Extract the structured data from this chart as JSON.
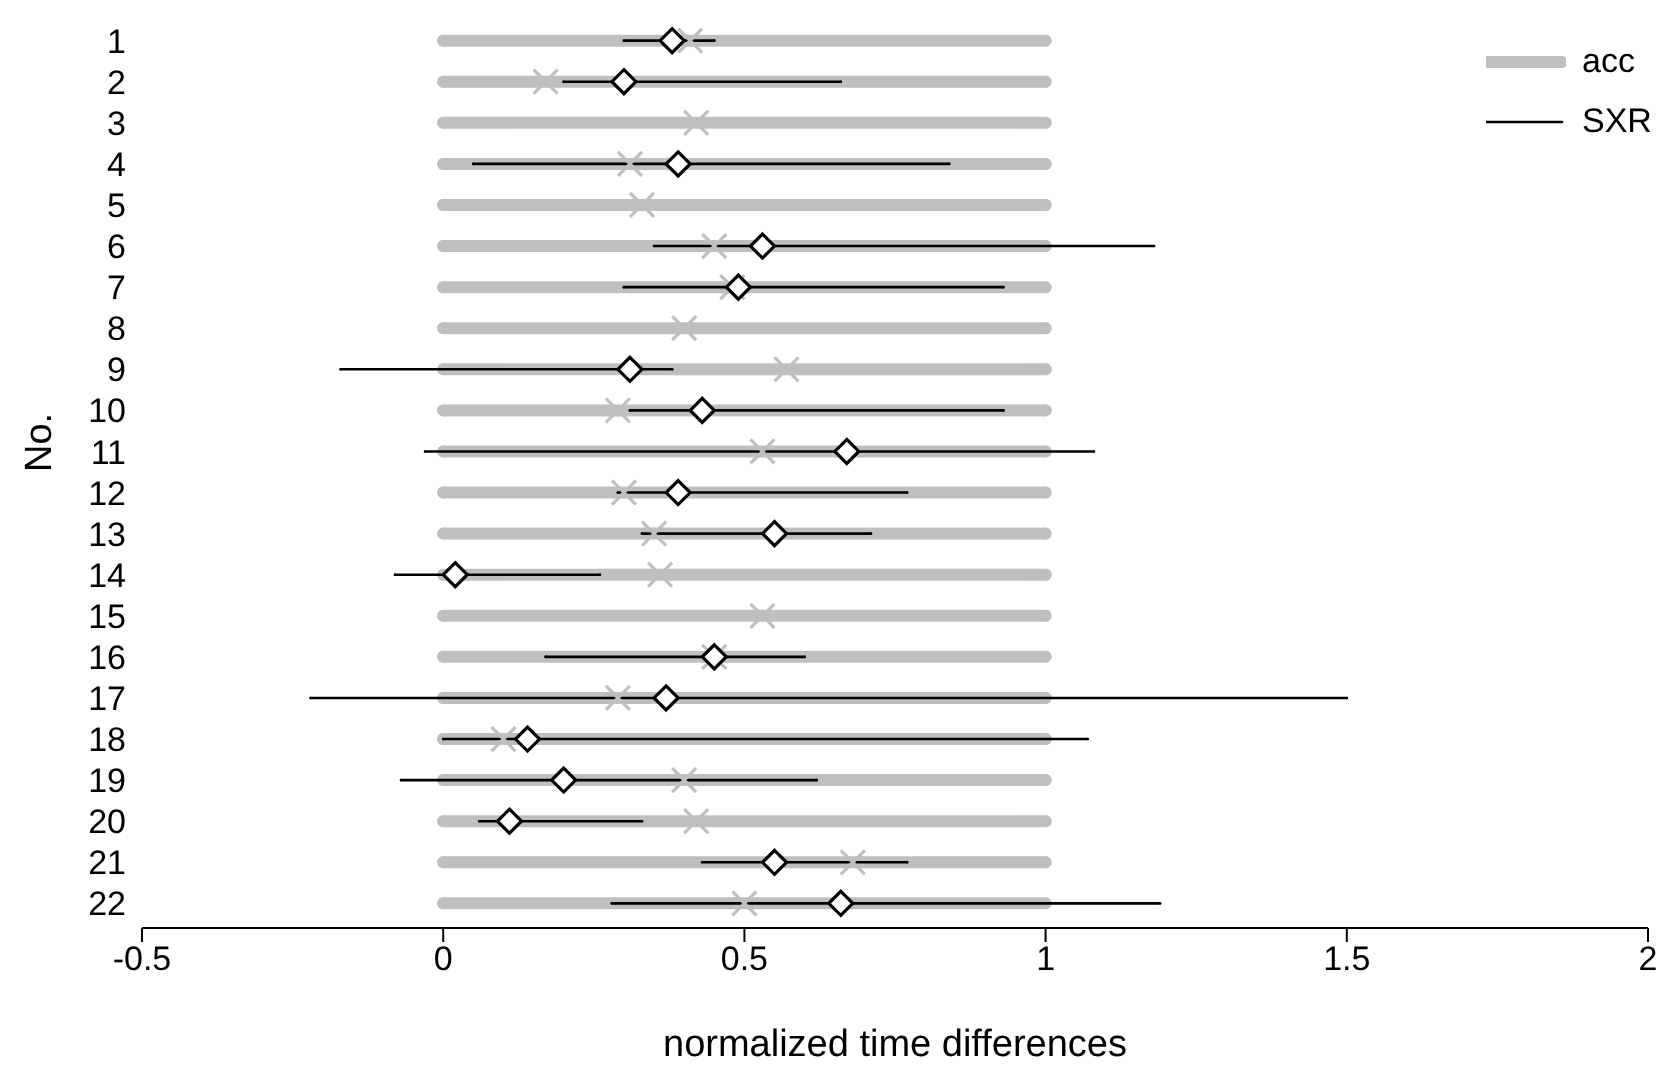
{
  "chart_data": {
    "type": "scatter",
    "orientation": "horizontal",
    "xlabel": "normalized time differences",
    "ylabel": "No.",
    "categories": [
      "1",
      "2",
      "3",
      "4",
      "5",
      "6",
      "7",
      "8",
      "9",
      "10",
      "11",
      "12",
      "13",
      "14",
      "15",
      "16",
      "17",
      "18",
      "19",
      "20",
      "21",
      "22"
    ],
    "series": [
      {
        "name": "acc",
        "color": "#bfbfbf",
        "marker": "cross",
        "values": [
          0.41,
          0.17,
          0.42,
          0.31,
          0.33,
          0.45,
          0.48,
          0.4,
          0.57,
          0.29,
          0.53,
          0.3,
          0.35,
          0.36,
          0.53,
          0.45,
          0.29,
          0.1,
          0.4,
          0.42,
          0.68,
          0.5
        ],
        "errors": [
          [
            0,
            1
          ],
          [
            0,
            1
          ],
          [
            0,
            1
          ],
          [
            0,
            1
          ],
          [
            0,
            1
          ],
          [
            0,
            1
          ],
          [
            0,
            1
          ],
          [
            0,
            1
          ],
          [
            0,
            1
          ],
          [
            0,
            1
          ],
          [
            0,
            1
          ],
          [
            0,
            1
          ],
          [
            0,
            1
          ],
          [
            0,
            1
          ],
          [
            0,
            1
          ],
          [
            0,
            1
          ],
          [
            0,
            1
          ],
          [
            0,
            1
          ],
          [
            0,
            1
          ],
          [
            0,
            1
          ],
          [
            0,
            1
          ],
          [
            0,
            1
          ]
        ]
      },
      {
        "name": "SXR",
        "color": "#000000",
        "marker": "diamond",
        "values": [
          0.38,
          0.3,
          null,
          0.39,
          null,
          0.53,
          0.49,
          null,
          0.31,
          0.43,
          0.67,
          0.39,
          0.55,
          0.02,
          null,
          0.45,
          0.37,
          0.14,
          0.2,
          0.11,
          0.55,
          0.66
        ],
        "errors": [
          [
            0.3,
            0.45
          ],
          [
            0.2,
            0.66
          ],
          null,
          [
            0.05,
            0.84
          ],
          null,
          [
            0.35,
            1.18
          ],
          [
            0.3,
            0.93
          ],
          null,
          [
            -0.17,
            0.38
          ],
          [
            0.31,
            0.93
          ],
          [
            -0.03,
            1.08
          ],
          [
            0.29,
            0.77
          ],
          [
            0.33,
            0.71
          ],
          [
            -0.08,
            0.26
          ],
          null,
          [
            0.17,
            0.6
          ],
          [
            -0.22,
            1.5
          ],
          [
            0,
            1.07
          ],
          [
            -0.07,
            0.62
          ],
          [
            0.06,
            0.33
          ],
          [
            0.43,
            0.77
          ],
          [
            0.28,
            1.19
          ]
        ]
      }
    ],
    "xlim": [
      -0.5,
      2
    ],
    "xticks": [
      -0.5,
      0,
      0.5,
      1,
      1.5,
      2
    ],
    "grid": false,
    "legend": "top right"
  }
}
